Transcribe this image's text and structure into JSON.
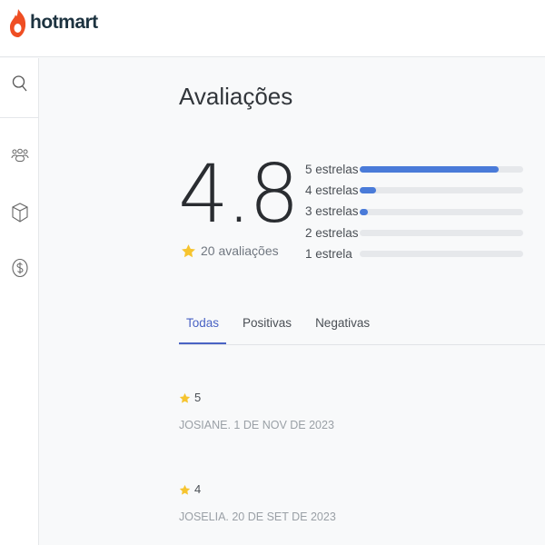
{
  "header": {
    "logo_text": "hotmart",
    "brand_color": "#ef4e23"
  },
  "sidebar": {
    "items": [
      {
        "icon": "search-icon"
      },
      {
        "icon": "users-icon"
      },
      {
        "icon": "box-icon"
      },
      {
        "icon": "dollar-icon"
      }
    ]
  },
  "page": {
    "title": "Avaliações"
  },
  "summary": {
    "score": "4.8",
    "count_label": "20 avaliações",
    "distribution": [
      {
        "label": "5 estrelas",
        "percent": 85
      },
      {
        "label": "4 estrelas",
        "percent": 10
      },
      {
        "label": "3 estrelas",
        "percent": 5
      },
      {
        "label": "2 estrelas",
        "percent": 0
      },
      {
        "label": "1 estrela",
        "percent": 0
      }
    ],
    "bar_color": "#4a7bd9",
    "star_color": "#f6c42f"
  },
  "tabs": [
    {
      "label": "Todas",
      "active": true
    },
    {
      "label": "Positivas"
    },
    {
      "label": "Negativas"
    }
  ],
  "reviews": [
    {
      "rating": "5",
      "author": "JOSIANE. 1 DE NOV DE 2023"
    },
    {
      "rating": "4",
      "author": "JOSELIA. 20 DE SET DE 2023"
    }
  ]
}
